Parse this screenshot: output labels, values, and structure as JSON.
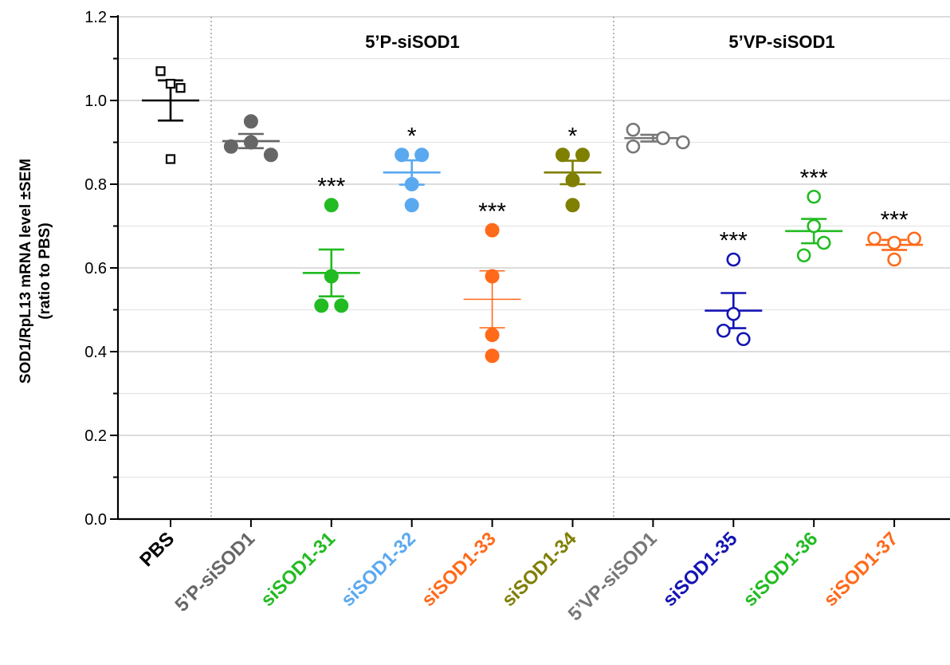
{
  "chart_data": {
    "type": "scatter",
    "ylabel_line1": "SOD1/RpL13 mRNA level ±SEM",
    "ylabel_line2": "(ratio to PBS)",
    "ylim": [
      0.0,
      1.2
    ],
    "yticks": [
      "0.0",
      "0.2",
      "0.4",
      "0.6",
      "0.8",
      "1.0",
      "1.2"
    ],
    "grid": true,
    "group_labels": [
      "5’P-siSOD1",
      "5’VP-siSOD1"
    ],
    "categories": [
      {
        "label": "PBS",
        "color": "#000000",
        "marker": "open-square",
        "points": [
          1.07,
          1.04,
          1.03,
          0.86
        ],
        "mean": 1.0,
        "sem": 0.048,
        "sig": ""
      },
      {
        "label": "5’P-siSOD1",
        "color": "#666666",
        "marker": "filled-circle",
        "points": [
          0.95,
          0.89,
          0.9,
          0.87
        ],
        "mean": 0.903,
        "sem": 0.017,
        "sig": ""
      },
      {
        "label": "siSOD1-31",
        "color": "#22bb22",
        "marker": "filled-circle",
        "points": [
          0.75,
          0.58,
          0.51,
          0.51
        ],
        "mean": 0.588,
        "sem": 0.056,
        "sig": "***"
      },
      {
        "label": "siSOD1-32",
        "color": "#5aa8f0",
        "marker": "filled-circle",
        "points": [
          0.87,
          0.87,
          0.8,
          0.75
        ],
        "mean": 0.828,
        "sem": 0.029,
        "sig": "*"
      },
      {
        "label": "siSOD1-33",
        "color": "#ff6a1a",
        "marker": "filled-circle",
        "points": [
          0.69,
          0.58,
          0.44,
          0.39
        ],
        "mean": 0.525,
        "sem": 0.068,
        "sig": "***"
      },
      {
        "label": "siSOD1-34",
        "color": "#7f7f00",
        "marker": "filled-circle",
        "points": [
          0.87,
          0.87,
          0.81,
          0.75
        ],
        "mean": 0.828,
        "sem": 0.028,
        "sig": "*"
      },
      {
        "label": "5’VP-siSOD1",
        "color": "#777777",
        "marker": "open-circle",
        "points": [
          0.93,
          0.89,
          0.91,
          0.9
        ],
        "mean": 0.91,
        "sem": 0.008,
        "sig": ""
      },
      {
        "label": "siSOD1-35",
        "color": "#1414b4",
        "marker": "open-circle",
        "points": [
          0.62,
          0.49,
          0.45,
          0.43
        ],
        "mean": 0.498,
        "sem": 0.042,
        "sig": "***"
      },
      {
        "label": "siSOD1-36",
        "color": "#22bb22",
        "marker": "open-circle",
        "points": [
          0.77,
          0.7,
          0.63,
          0.66
        ],
        "mean": 0.688,
        "sem": 0.029,
        "sig": "***"
      },
      {
        "label": "siSOD1-37",
        "color": "#ff6a1a",
        "marker": "open-circle",
        "points": [
          0.67,
          0.66,
          0.67,
          0.62
        ],
        "mean": 0.655,
        "sem": 0.012,
        "sig": "***"
      }
    ]
  }
}
